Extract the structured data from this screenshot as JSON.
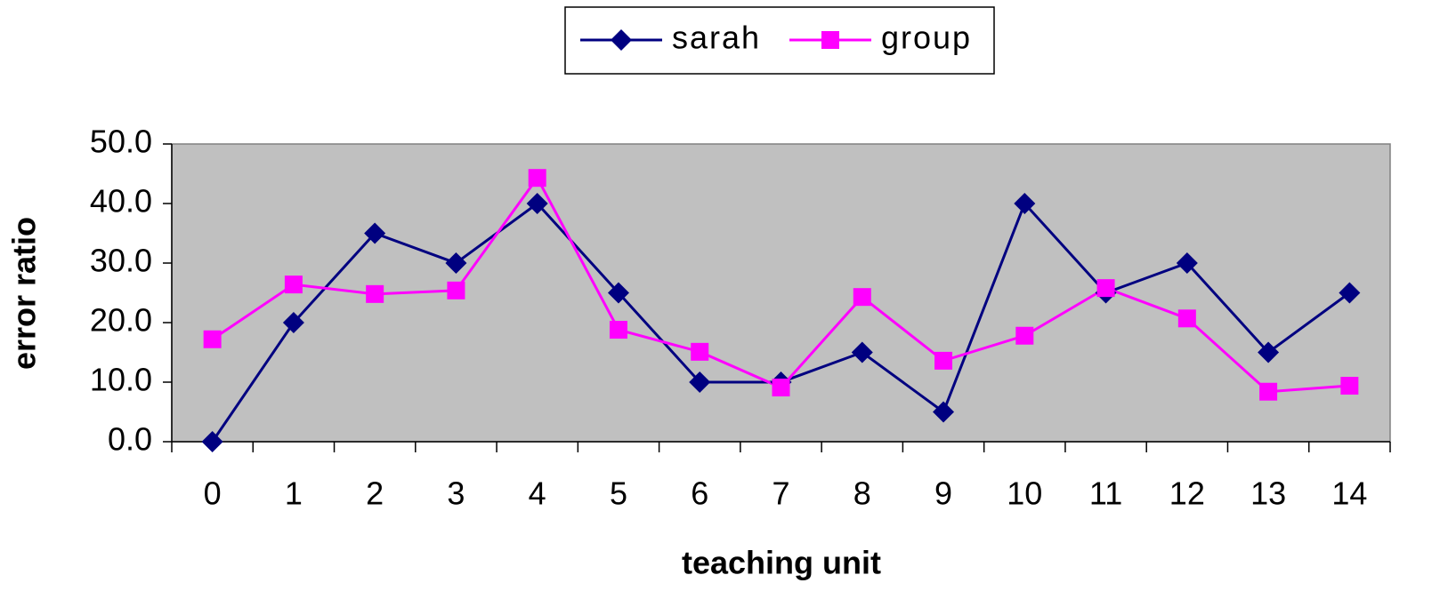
{
  "chart_data": {
    "type": "line",
    "xlabel": "teaching unit",
    "ylabel": "error ratio",
    "categories": [
      "0",
      "1",
      "2",
      "3",
      "4",
      "5",
      "6",
      "7",
      "8",
      "9",
      "10",
      "11",
      "12",
      "13",
      "14"
    ],
    "series": [
      {
        "name": "sarah",
        "color": "#000080",
        "marker": "diamond",
        "values": [
          0,
          20,
          35,
          30,
          40,
          25,
          10,
          10,
          15,
          5,
          40,
          25,
          30,
          15,
          25
        ]
      },
      {
        "name": "group",
        "color": "#ff00ff",
        "marker": "square",
        "values": [
          17.2,
          26.4,
          24.8,
          25.4,
          44.3,
          18.8,
          15.1,
          9.1,
          24.3,
          13.6,
          17.8,
          25.8,
          20.7,
          8.4,
          9.4
        ]
      }
    ],
    "ylim": [
      0,
      50
    ],
    "yticks": [
      {
        "value": 0,
        "label": "0.0"
      },
      {
        "value": 10,
        "label": "10.0"
      },
      {
        "value": 20,
        "label": "20.0"
      },
      {
        "value": 30,
        "label": "30.0"
      },
      {
        "value": 40,
        "label": "40.0"
      },
      {
        "value": 50,
        "label": "50.0"
      }
    ],
    "legend": "top",
    "plot_background": "#c0c0c0"
  }
}
